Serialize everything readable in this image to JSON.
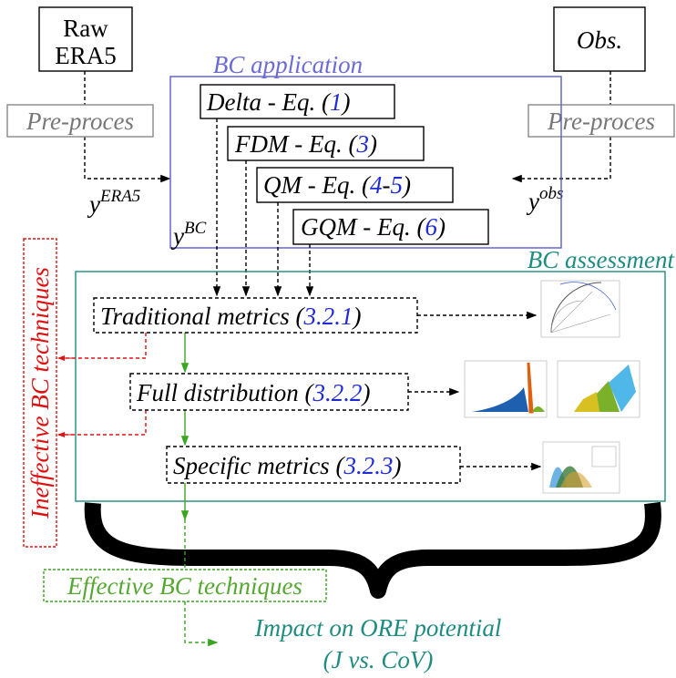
{
  "inputs": {
    "raw": {
      "line1": "Raw",
      "line2": "ERA5"
    },
    "obs": "Obs."
  },
  "preprocess": {
    "left": "Pre-proces",
    "right": "Pre-proces"
  },
  "signals": {
    "era5": {
      "base": "y",
      "sup": "ERA5"
    },
    "bc": {
      "base": "y",
      "sup": "BC"
    },
    "obs": {
      "base": "y",
      "sup": "obs"
    }
  },
  "application": {
    "title": "BC application",
    "methods": [
      {
        "name": "Delta - Eq. (",
        "ref": "1",
        "close": ")"
      },
      {
        "name": "FDM - Eq. (",
        "ref": "3",
        "close": ")"
      },
      {
        "name": "QM - Eq. (",
        "ref": "4",
        "sep": "-",
        "ref2": "5",
        "close": ")"
      },
      {
        "name": "GQM - Eq. (",
        "ref": "6",
        "close": ")"
      }
    ]
  },
  "assessment": {
    "title": "BC assessment",
    "steps": [
      {
        "name": "Traditional metrics (",
        "ref": "3.2.1",
        "close": ")"
      },
      {
        "name": "Full distribution (",
        "ref": "3.2.2",
        "close": ")"
      },
      {
        "name": "Specific metrics (",
        "ref": "3.2.3",
        "close": ")"
      }
    ]
  },
  "outcomes": {
    "ineffective": "Ineffective BC techniques",
    "effective": "Effective BC techniques",
    "impact": {
      "line1": "Impact on ORE potential",
      "line2": "(J vs. CoV)"
    }
  }
}
